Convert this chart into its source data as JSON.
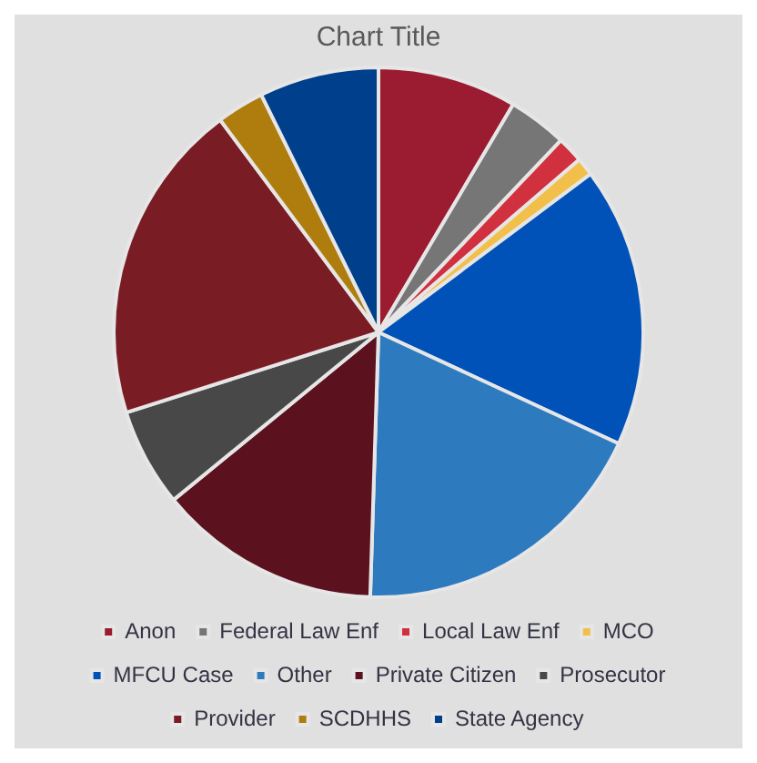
{
  "chart_data": {
    "type": "pie",
    "title": "Chart Title",
    "categories": [
      "Anon",
      "Federal Law Enf",
      "Local Law Enf",
      "MCO",
      "MFCU Case",
      "Other",
      "Private Citizen",
      "Prosecutor",
      "Provider",
      "SCDHHS",
      "State Agency"
    ],
    "values": [
      8.5,
      3.6,
      1.6,
      1.1,
      17.1,
      18.6,
      13.6,
      6.0,
      19.7,
      2.9,
      7.3
    ],
    "colors": [
      "#9b1b30",
      "#767676",
      "#d1303f",
      "#f2bf4a",
      "#0052b8",
      "#2e7abf",
      "#5c111e",
      "#484848",
      "#7a1c24",
      "#ae7d0e",
      "#003f8c"
    ],
    "legend": "bottom"
  }
}
